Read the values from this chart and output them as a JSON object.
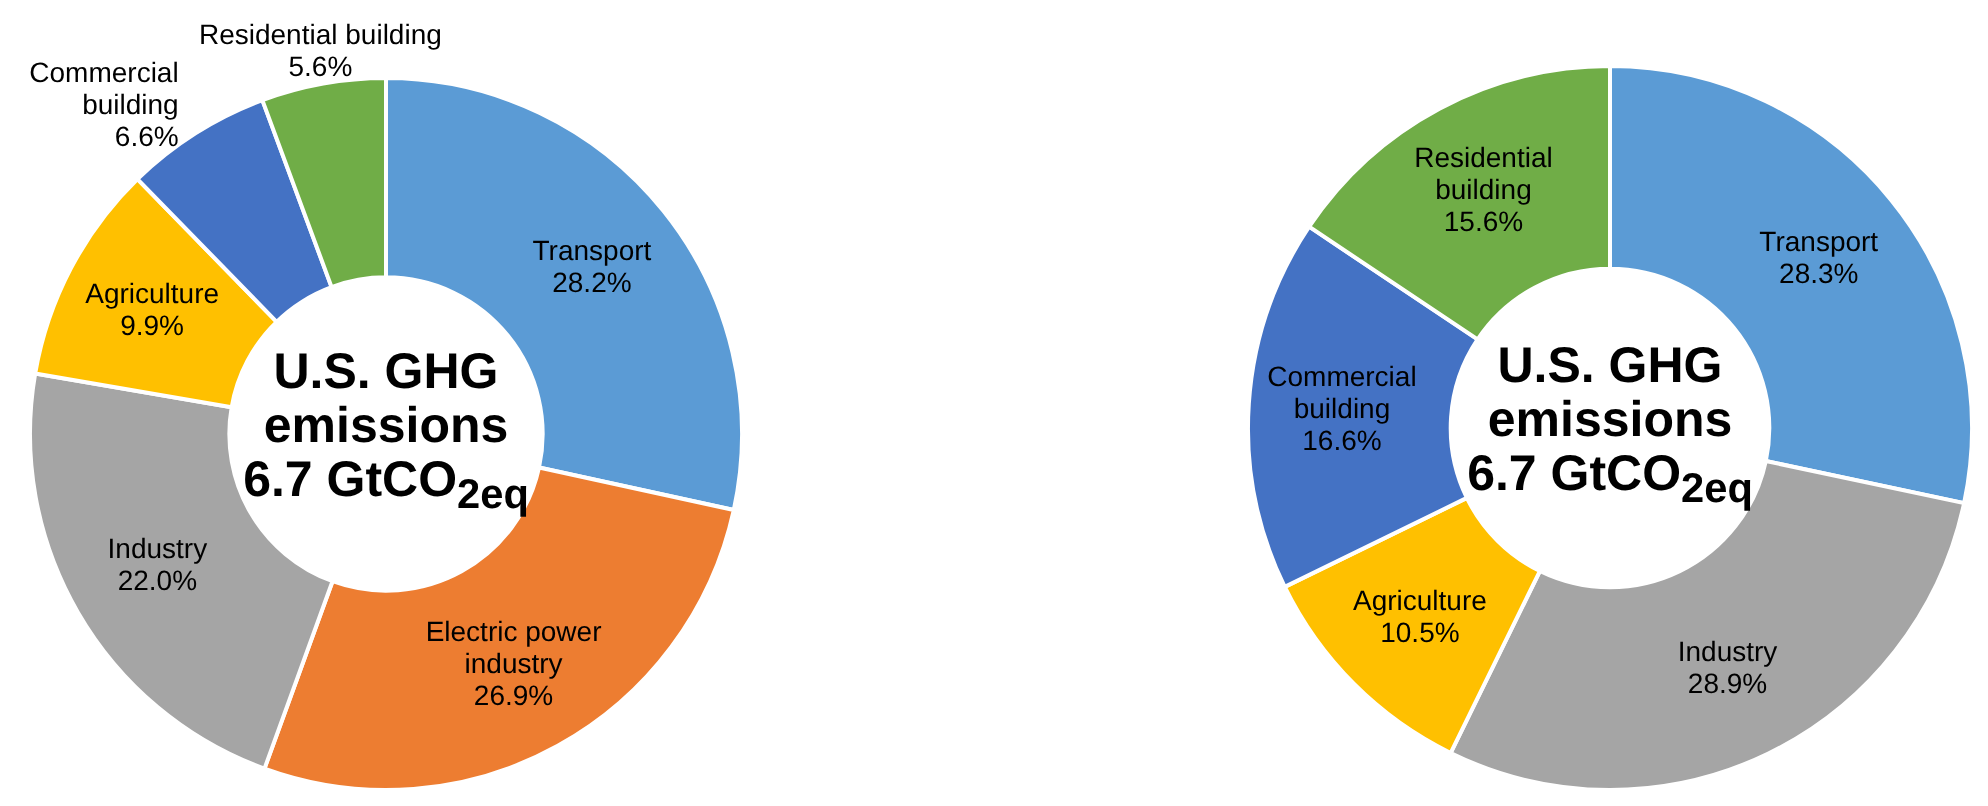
{
  "chart_data": [
    {
      "type": "donut",
      "title": "U.S. GHG emissions 6.7 GtCO$_{2eq}$",
      "categories": [
        "Transport",
        "Electric power industry",
        "Industry",
        "Agriculture",
        "Commercial building",
        "Residential building"
      ],
      "values": [
        28.2,
        26.9,
        22.0,
        9.9,
        6.6,
        5.6
      ],
      "colors": [
        "#5b9bd5",
        "#ed7d31",
        "#a5a5a5",
        "#ffc000",
        "#4472c4",
        "#70ad47"
      ],
      "value_labels": [
        "28.2%",
        "26.9%",
        "22.0%",
        "9.9%",
        "6.6%",
        "5.6%"
      ],
      "legend": false
    },
    {
      "type": "donut",
      "title": "U.S. GHG emissions 6.7 GtCO$_{2eq}$",
      "categories": [
        "Transport",
        "Industry",
        "Agriculture",
        "Commercial building",
        "Residential building"
      ],
      "values": [
        28.3,
        28.9,
        10.5,
        16.6,
        15.6
      ],
      "colors": [
        "#5b9bd5",
        "#a5a5a5",
        "#ffc000",
        "#4472c4",
        "#70ad47"
      ],
      "value_labels": [
        "28.3%",
        "28.9%",
        "10.5%",
        "16.6%",
        "15.6%"
      ],
      "legend": false
    }
  ]
}
